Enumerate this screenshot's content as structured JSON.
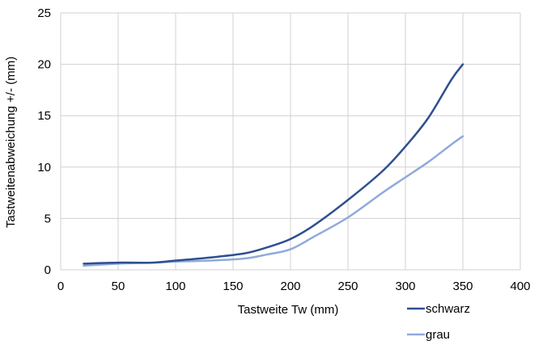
{
  "chart_data": {
    "type": "line",
    "title": "",
    "xlabel": "Tastweite Tw (mm)",
    "ylabel": "Tastweitenabweichung +/- (mm)",
    "xlim": [
      0,
      400
    ],
    "ylim": [
      0,
      25
    ],
    "xticks": [
      0,
      50,
      100,
      150,
      200,
      250,
      300,
      350,
      400
    ],
    "yticks": [
      0,
      5,
      10,
      15,
      20,
      25
    ],
    "grid": true,
    "legend_position": "bottom-right",
    "series": [
      {
        "name": "schwarz",
        "color": "#2f4f8f",
        "x": [
          20,
          50,
          80,
          100,
          130,
          160,
          180,
          200,
          220,
          250,
          280,
          300,
          320,
          340,
          350
        ],
        "y": [
          0.6,
          0.7,
          0.7,
          0.9,
          1.2,
          1.6,
          2.2,
          3.0,
          4.3,
          6.8,
          9.6,
          12.0,
          14.8,
          18.5,
          20.0
        ]
      },
      {
        "name": "grau",
        "color": "#8faadc",
        "x": [
          20,
          50,
          80,
          100,
          130,
          160,
          180,
          200,
          220,
          250,
          280,
          300,
          320,
          340,
          350
        ],
        "y": [
          0.4,
          0.6,
          0.7,
          0.8,
          0.9,
          1.1,
          1.5,
          2.0,
          3.2,
          5.1,
          7.5,
          9.0,
          10.5,
          12.2,
          13.0
        ]
      }
    ]
  }
}
